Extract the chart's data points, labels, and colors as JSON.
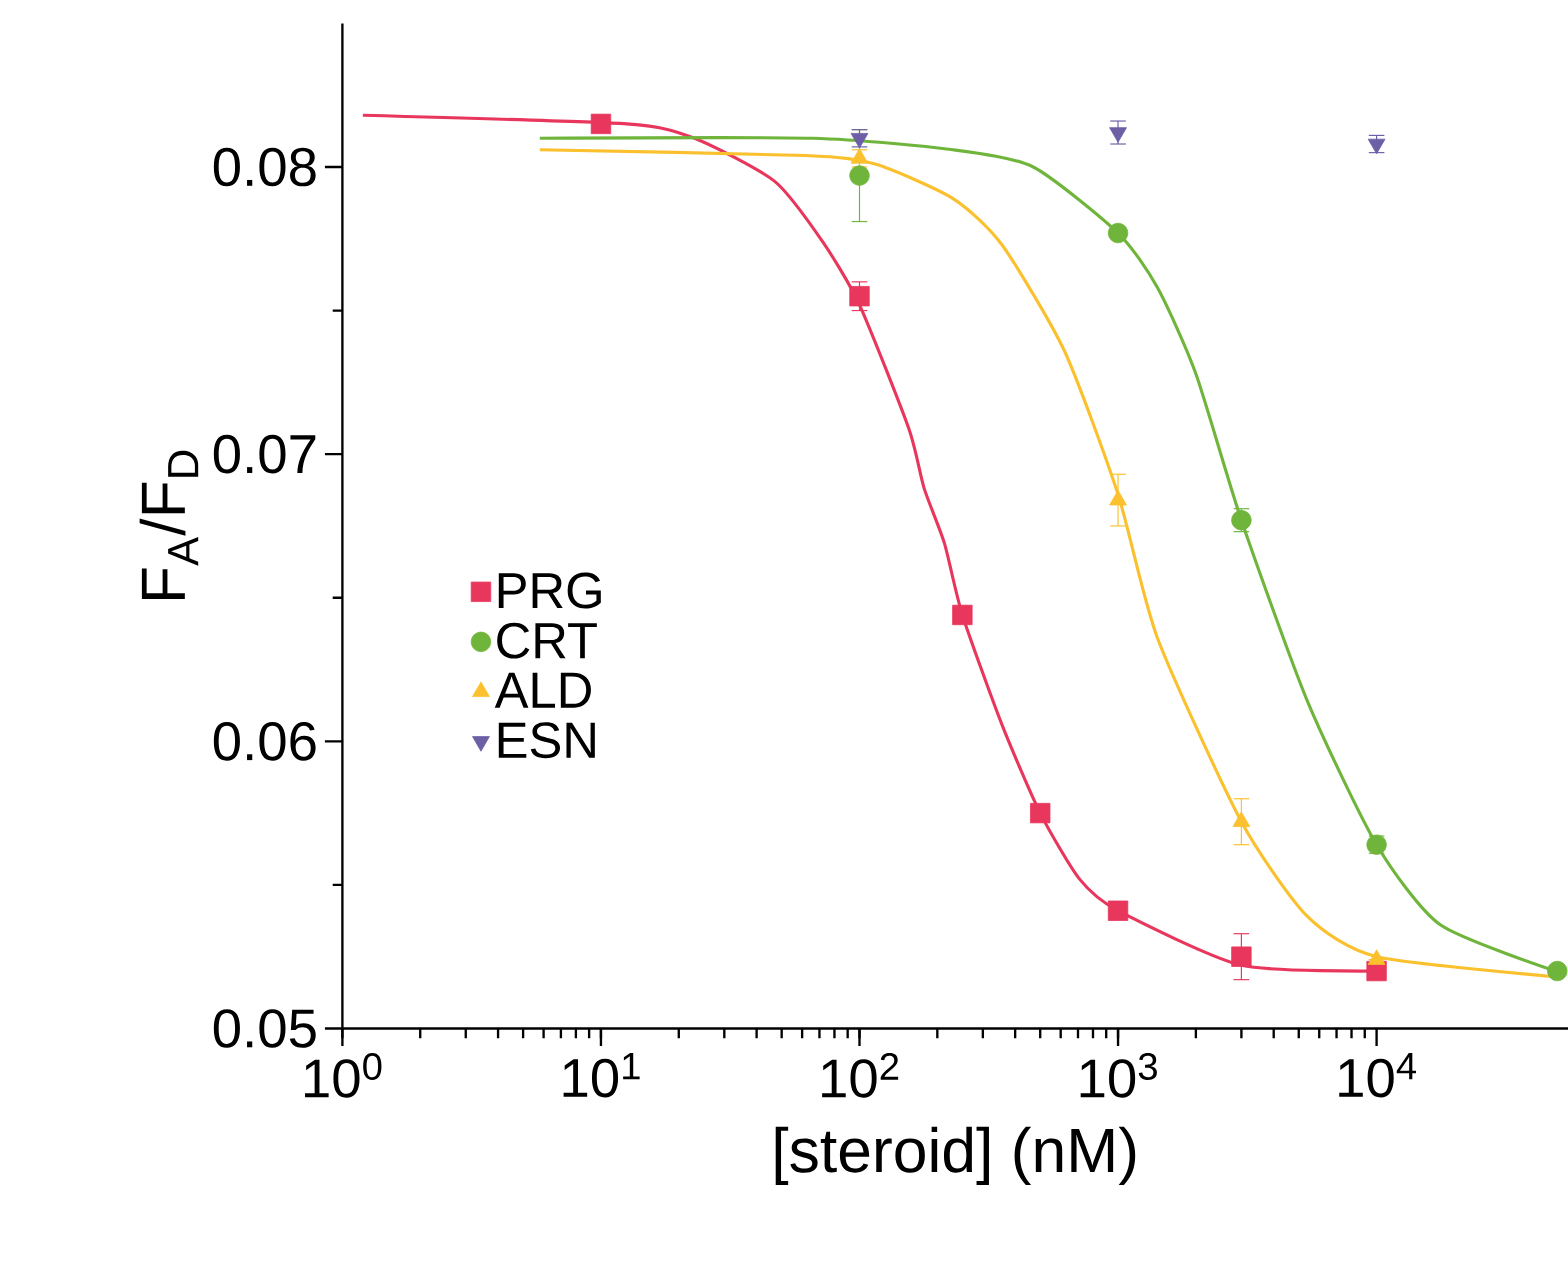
{
  "chart_data": {
    "type": "scatter",
    "xlabel": "[steroid] (nM)",
    "ylabel": "F$_{A}$/F$_{D}$",
    "log": "x",
    "xlim": [
      1,
      55000
    ],
    "ylim": [
      0.05,
      0.085
    ],
    "xticks": [
      {
        "value": 1,
        "label": "10$^{0}$"
      },
      {
        "value": 10,
        "label": "10$^{1}$"
      },
      {
        "value": 100,
        "label": "10$^{2}$"
      },
      {
        "value": 1000,
        "label": "10$^{3}$"
      },
      {
        "value": 10000,
        "label": "10$^{4}$"
      }
    ],
    "yticks": [
      0.05,
      0.06,
      0.07,
      0.08
    ],
    "legend": "left",
    "grid": false,
    "series": [
      {
        "name": "PRG",
        "color": "#e8365d",
        "marker": "square",
        "x": [
          10,
          100,
          250,
          500,
          1000,
          3000,
          10000
        ],
        "values": [
          0.0815,
          0.0755,
          0.0644,
          0.0575,
          0.0541,
          0.0525,
          0.052
        ],
        "errors": [
          null,
          0.0005,
          0.0003,
          null,
          null,
          0.0008,
          null
        ]
      },
      {
        "name": "CRT",
        "color": "#70b53b",
        "marker": "circle",
        "x": [
          100,
          1000,
          3000,
          10000,
          50000
        ],
        "values": [
          0.0797,
          0.0777,
          0.0677,
          0.0564,
          0.052
        ],
        "errors": [
          0.0016,
          null,
          0.0004,
          0.0003,
          null
        ]
      },
      {
        "name": "ALD",
        "color": "#fbc02d",
        "marker": "triangle",
        "x": [
          100,
          1000,
          3000,
          10000
        ],
        "values": [
          0.0803,
          0.0684,
          0.0572,
          0.0524
        ],
        "errors": [
          0.0003,
          0.0009,
          0.0008,
          null
        ]
      },
      {
        "name": "ESN",
        "color": "#6d5fa5",
        "marker": "triangle down",
        "x": [
          100,
          1000,
          10000
        ],
        "values": [
          0.081,
          0.0812,
          0.0808
        ],
        "errors": [
          0.0003,
          0.0004,
          0.0003
        ]
      },
      {
        "type": "line",
        "color": "#e8365d",
        "x": [
          1.2,
          12.6,
          23,
          47,
          72,
          100,
          155,
          178,
          213,
          250,
          355,
          500,
          710,
          1000,
          3000,
          10000
        ],
        "values": [
          0.0818,
          0.0815,
          0.081,
          0.0795,
          0.0774,
          0.0752,
          0.0709,
          0.0688,
          0.0669,
          0.0644,
          0.0606,
          0.0575,
          0.0552,
          0.0541,
          0.0522,
          0.052
        ]
      },
      {
        "type": "line",
        "color": "#70b53b",
        "x": [
          5.8,
          66,
          230,
          470,
          1000,
          1420,
          2000,
          3000,
          5400,
          10000,
          17700,
          49000
        ],
        "values": [
          0.081,
          0.081,
          0.0806,
          0.08,
          0.0777,
          0.0758,
          0.0728,
          0.0677,
          0.0614,
          0.0564,
          0.0536,
          0.052
        ]
      },
      {
        "type": "line",
        "color": "#fbc02d",
        "x": [
          5.8,
          62,
          115,
          230,
          355,
          620,
          1000,
          1420,
          3000,
          5400,
          10000,
          49000
        ],
        "values": [
          0.0806,
          0.0804,
          0.0801,
          0.0789,
          0.0773,
          0.0736,
          0.0686,
          0.0636,
          0.0572,
          0.0539,
          0.0525,
          0.0518
        ]
      }
    ]
  }
}
